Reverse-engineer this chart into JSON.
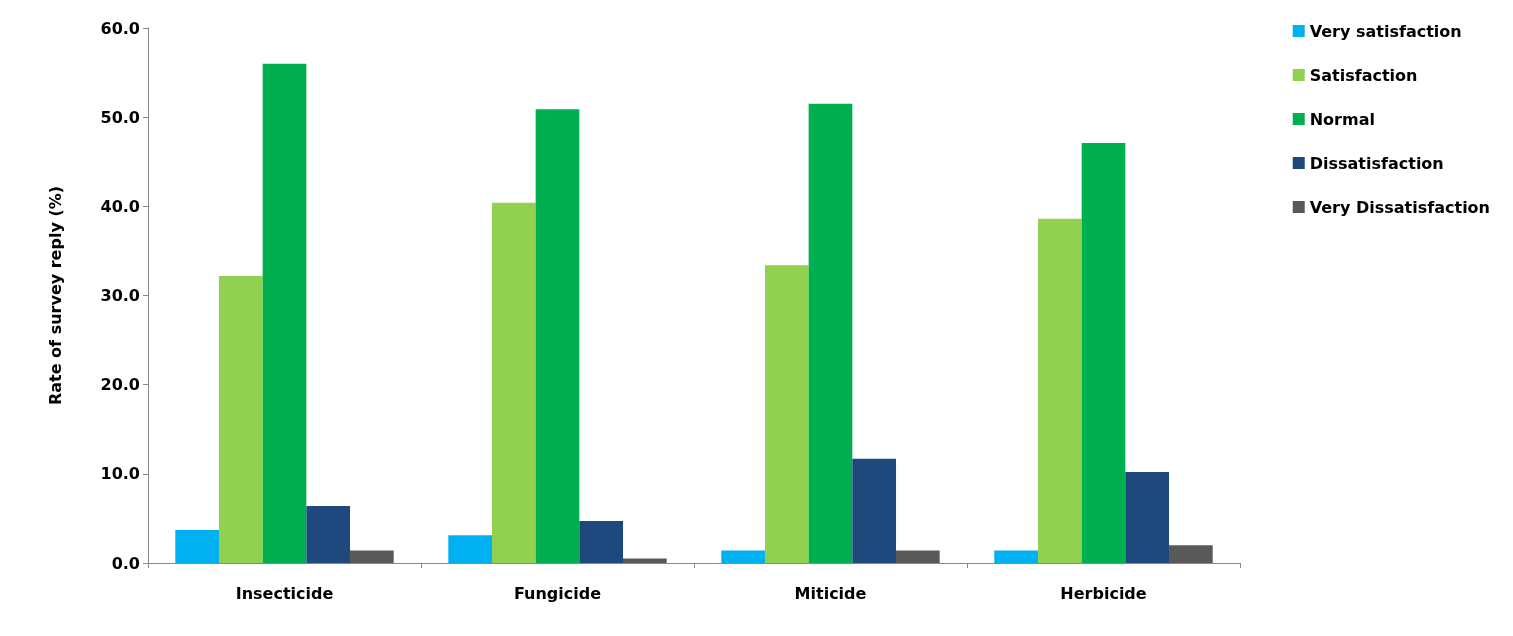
{
  "chart_data": {
    "type": "bar",
    "ylabel": "Rate of survey reply (%)",
    "categories": [
      "Insecticide",
      "Fungicide",
      "Miticide",
      "Herbicide"
    ],
    "series": [
      {
        "name": "Very satisfaction",
        "color": "#00b0f0",
        "values": [
          3.7,
          3.1,
          1.4,
          1.4
        ]
      },
      {
        "name": "Satisfaction",
        "color": "#92d050",
        "values": [
          32.2,
          40.4,
          33.4,
          38.6
        ]
      },
      {
        "name": "Normal",
        "color": "#00b050",
        "values": [
          56.0,
          50.9,
          51.5,
          47.1
        ]
      },
      {
        "name": "Dissatisfaction",
        "color": "#1f497d",
        "values": [
          6.4,
          4.7,
          11.7,
          10.2
        ]
      },
      {
        "name": "Very Dissatisfaction",
        "color": "#595959",
        "values": [
          1.4,
          0.5,
          1.4,
          2.0
        ]
      }
    ],
    "ylim": [
      0,
      60
    ],
    "yticks": [
      {
        "value": 0,
        "label": "0.0"
      },
      {
        "value": 10,
        "label": "10.0"
      },
      {
        "value": 20,
        "label": "20.0"
      },
      {
        "value": 30,
        "label": "30.0"
      },
      {
        "value": 40,
        "label": "40.0"
      },
      {
        "value": 50,
        "label": "50.0"
      },
      {
        "value": 60,
        "label": "60.0"
      }
    ],
    "grid": false,
    "legend": "right"
  }
}
